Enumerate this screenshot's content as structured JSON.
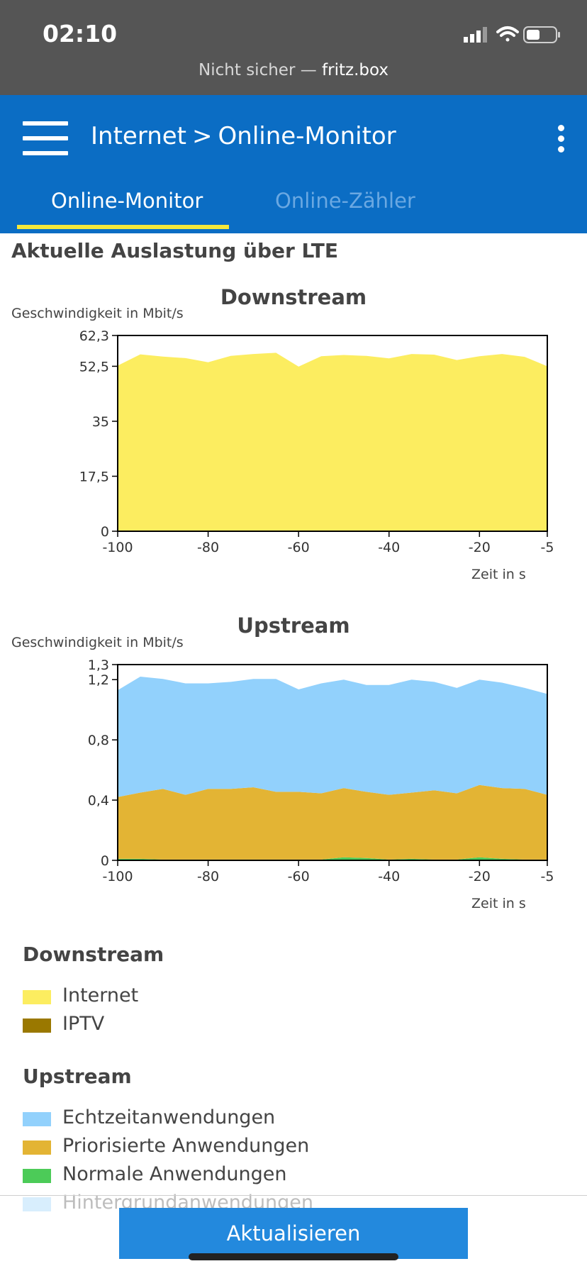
{
  "status_bar": {
    "time": "02:10",
    "url_prefix": "Nicht sicher — ",
    "url_host": "fritz.box",
    "icons": [
      "signal-icon",
      "wifi-icon",
      "battery-icon"
    ]
  },
  "header": {
    "breadcrumb_parent": "Internet",
    "breadcrumb_separator": ">",
    "breadcrumb_current": "Online-Monitor",
    "menu_icon": "hamburger-menu-icon",
    "more_icon": "more-vertical-icon"
  },
  "tabs": [
    {
      "label": "Online-Monitor",
      "active": true
    },
    {
      "label": "Online-Zähler",
      "active": false
    }
  ],
  "colors": {
    "header": "#0b6dc4",
    "tab_underline": "#f5e83a",
    "internet": "#fced60",
    "iptv": "#9a7800",
    "echtzeit": "#92d1fc",
    "priorisiert": "#e3b434",
    "normal": "#4ccb58",
    "hintergrund": "#c9e9fb",
    "button": "#2389dd"
  },
  "section_title": "Aktuelle Auslastung über LTE",
  "chart_data": [
    {
      "type": "area",
      "title": "Downstream",
      "ylabel": "Geschwindigkeit in Mbit/s",
      "xlabel": "Zeit in s",
      "xlim": [
        -100,
        -5
      ],
      "ylim": [
        0,
        62.3
      ],
      "x_ticks": [
        -100,
        -80,
        -60,
        -40,
        -20,
        -5
      ],
      "x_tick_labels": [
        "-100",
        "-80",
        "-60",
        "-40",
        "-20",
        "-5"
      ],
      "y_ticks": [
        0,
        17.5,
        35,
        52.5,
        62.3
      ],
      "y_tick_labels": [
        "0",
        "17,5",
        "35",
        "52,5",
        "62,3"
      ],
      "x": [
        -100,
        -95,
        -90,
        -85,
        -80,
        -75,
        -70,
        -65,
        -60,
        -55,
        -50,
        -45,
        -40,
        -35,
        -30,
        -25,
        -20,
        -15,
        -10,
        -5
      ],
      "series": [
        {
          "name": "Internet",
          "color": "#fced60",
          "values": [
            52.7,
            56.3,
            55.6,
            55.1,
            53.8,
            55.8,
            56.4,
            56.8,
            52.4,
            55.7,
            56.1,
            55.8,
            55.0,
            56.4,
            56.2,
            54.5,
            55.7,
            56.4,
            55.5,
            52.5
          ]
        }
      ]
    },
    {
      "type": "area",
      "stacked": true,
      "title": "Upstream",
      "ylabel": "Geschwindigkeit in Mbit/s",
      "xlabel": "Zeit in s",
      "xlim": [
        -100,
        -5
      ],
      "ylim": [
        0,
        1.3
      ],
      "x_ticks": [
        -100,
        -80,
        -60,
        -40,
        -20,
        -5
      ],
      "x_tick_labels": [
        "-100",
        "-80",
        "-60",
        "-40",
        "-20",
        "-5"
      ],
      "y_ticks": [
        0,
        0.4,
        0.8,
        1.2,
        1.3
      ],
      "y_tick_labels": [
        "0",
        "0,4",
        "0,8",
        "1,2",
        "1,3"
      ],
      "x": [
        -100,
        -95,
        -90,
        -85,
        -80,
        -75,
        -70,
        -65,
        -60,
        -55,
        -50,
        -45,
        -40,
        -35,
        -30,
        -25,
        -20,
        -15,
        -10,
        -5
      ],
      "series": [
        {
          "name": "Normale Anwendungen",
          "color": "#4ccb58",
          "values": [
            0.01,
            0.01,
            0.005,
            0.005,
            0.005,
            0.005,
            0.005,
            0.005,
            0.005,
            0.005,
            0.02,
            0.015,
            0.005,
            0.01,
            0.005,
            0.005,
            0.02,
            0.01,
            0.005,
            0.005
          ]
        },
        {
          "name": "Priorisierte Anwendungen",
          "color": "#e3b434",
          "values": [
            0.41,
            0.44,
            0.47,
            0.43,
            0.47,
            0.47,
            0.48,
            0.45,
            0.45,
            0.44,
            0.46,
            0.44,
            0.43,
            0.44,
            0.46,
            0.44,
            0.48,
            0.47,
            0.47,
            0.43
          ]
        },
        {
          "name": "Echtzeitanwendungen",
          "color": "#92d1fc",
          "values": [
            0.71,
            0.77,
            0.73,
            0.74,
            0.7,
            0.71,
            0.72,
            0.75,
            0.68,
            0.73,
            0.72,
            0.71,
            0.73,
            0.75,
            0.72,
            0.7,
            0.7,
            0.7,
            0.67,
            0.67
          ]
        }
      ]
    }
  ],
  "legend": {
    "downstream": {
      "title": "Downstream",
      "items": [
        {
          "label": "Internet",
          "color": "#fced60"
        },
        {
          "label": "IPTV",
          "color": "#9a7800"
        }
      ]
    },
    "upstream": {
      "title": "Upstream",
      "items": [
        {
          "label": "Echtzeitanwendungen",
          "color": "#92d1fc"
        },
        {
          "label": "Priorisierte Anwendungen",
          "color": "#e3b434"
        },
        {
          "label": "Normale Anwendungen",
          "color": "#4ccb58"
        },
        {
          "label": "Hintergrundanwendungen",
          "color": "#c9e9fb"
        }
      ]
    }
  },
  "refresh_button": "Aktualisieren"
}
